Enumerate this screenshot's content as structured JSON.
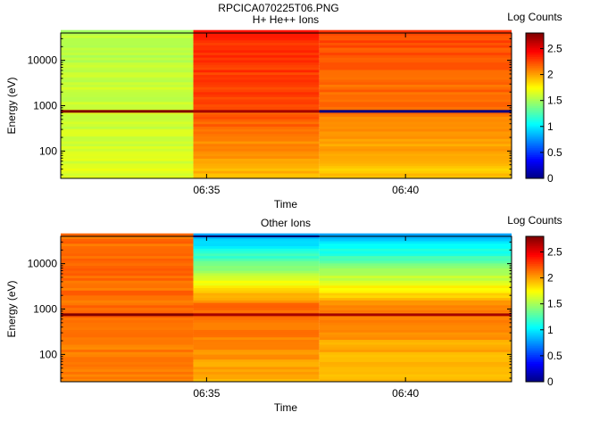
{
  "figure": {
    "title": "RPCICA070225T06.PNG"
  },
  "chart_data": [
    {
      "type": "heatmap",
      "title": "H+ He++ Ions",
      "xlabel": "Time",
      "ylabel": "Energy (eV)",
      "x_ticks": [
        "06:35",
        "06:40"
      ],
      "y_ticks": [
        "100",
        "1000",
        "10000"
      ],
      "y_scale": "log",
      "colorbar": {
        "label": "Log Counts",
        "ticks": [
          "0",
          "0.5",
          "1",
          "1.5",
          "2",
          "2.5"
        ],
        "range": [
          0,
          2.8
        ]
      },
      "time_segments": [
        {
          "start": "06:31:20",
          "end": "06:34:40",
          "typical_log_counts": 1.6,
          "high_energy_log_counts": 1.55,
          "low_energy_log_counts": 1.65
        },
        {
          "start": "06:34:40",
          "end": "06:37:50",
          "typical_log_counts": 2.25,
          "high_energy_log_counts": 2.35,
          "low_energy_log_counts": 1.95
        },
        {
          "start": "06:37:50",
          "end": "06:42:40",
          "typical_log_counts": 2.15,
          "high_energy_log_counts": 2.25,
          "low_energy_log_counts": 1.9
        }
      ],
      "marker_line": {
        "energy_ev": 750,
        "log_counts_by_segment": [
          2.8,
          2.7,
          0.0
        ]
      }
    },
    {
      "type": "heatmap",
      "title": "Other Ions",
      "xlabel": "Time",
      "ylabel": "Energy (eV)",
      "x_ticks": [
        "06:35",
        "06:40"
      ],
      "y_ticks": [
        "100",
        "1000",
        "10000"
      ],
      "y_scale": "log",
      "colorbar": {
        "label": "Log Counts",
        "ticks": [
          "0",
          "0.5",
          "1",
          "1.5",
          "2",
          "2.5"
        ],
        "range": [
          0,
          2.8
        ]
      },
      "time_segments": [
        {
          "start": "06:31:20",
          "end": "06:34:40",
          "typical_log_counts": 2.15,
          "high_energy_log_counts": 2.15,
          "low_energy_log_counts": 2.1
        },
        {
          "start": "06:34:40",
          "end": "06:37:50",
          "typical_log_counts": 2.2,
          "high_energy_log_counts": 0.8,
          "low_energy_log_counts": 1.95
        },
        {
          "start": "06:37:50",
          "end": "06:42:40",
          "typical_log_counts": 2.1,
          "high_energy_log_counts": 0.85,
          "low_energy_log_counts": 1.9
        }
      ],
      "marker_line": {
        "energy_ev": 750,
        "log_counts_by_segment": [
          2.8,
          2.7,
          2.7
        ]
      }
    }
  ]
}
